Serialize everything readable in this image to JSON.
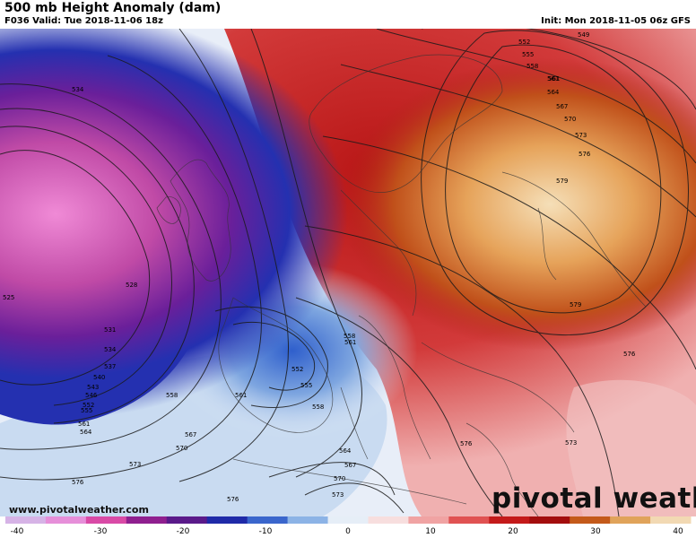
{
  "header": {
    "title": "500 mb Height Anomaly (dam)",
    "valid": "F036 Valid: Tue 2018-11-06 18z",
    "init": "Init: Mon 2018-11-05 06z GFS"
  },
  "contour_labels": [
    "534",
    "525",
    "528",
    "531",
    "534",
    "537",
    "540",
    "543",
    "546",
    "552",
    "555",
    "558",
    "561",
    "564",
    "567",
    "570",
    "573",
    "576",
    "579",
    "552",
    "555",
    "558",
    "561",
    "558",
    "561",
    "564",
    "567",
    "570",
    "573",
    "576",
    "561",
    "573",
    "576",
    "576",
    "579",
    "573",
    "576",
    "570",
    "567",
    "564",
    "561",
    "558",
    "555",
    "552",
    "549"
  ],
  "footer": {
    "url": "www.pivotalweather.com",
    "brand": "pivotal weather"
  },
  "colorbar": {
    "ticks": [
      "-40",
      "-30",
      "-20",
      "-10",
      "0",
      "10",
      "20",
      "30",
      "40"
    ],
    "colors": [
      "#d6b3e6",
      "#e68fd9",
      "#d94aa6",
      "#8f1f8f",
      "#5a1a8a",
      "#1f2aa8",
      "#3a66cc",
      "#8cb3e6",
      "#e6eef7",
      "#f7dede",
      "#f0a3a3",
      "#e05252",
      "#c41a1a",
      "#a30d0d",
      "#c45a1a",
      "#e0a35a",
      "#f2d9b3"
    ]
  }
}
